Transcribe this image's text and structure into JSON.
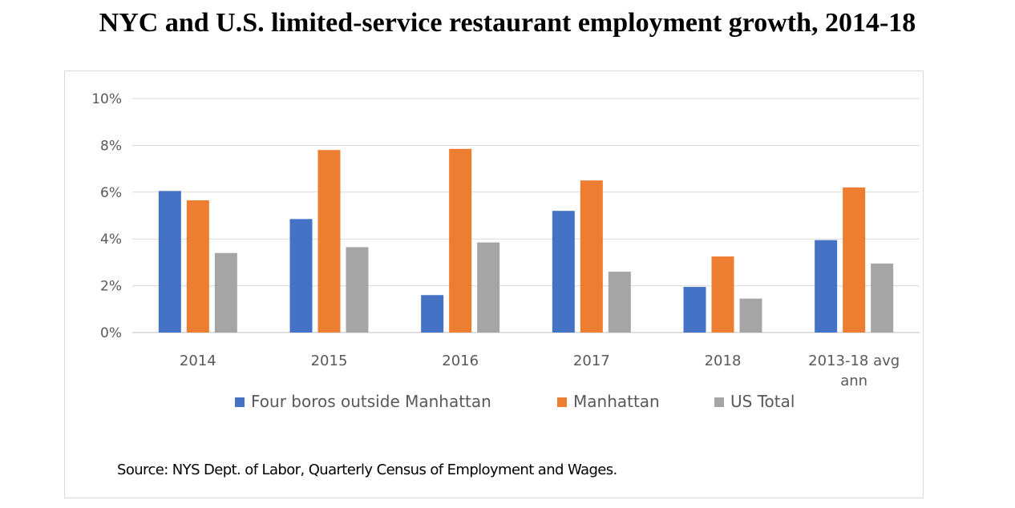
{
  "title": "NYC and U.S. limited-service restaurant employment growth, 2014-18",
  "source": "Source: NYS Dept. of Labor, Quarterly Census of Employment and Wages.",
  "chart_data": {
    "type": "bar",
    "title": "NYC and U.S. limited-service restaurant employment growth, 2014-18",
    "xlabel": "",
    "ylabel": "",
    "ylim": [
      0,
      10
    ],
    "yticks": [
      "0%",
      "2%",
      "4%",
      "6%",
      "8%",
      "10%"
    ],
    "categories": [
      [
        "2014"
      ],
      [
        "2015"
      ],
      [
        "2016"
      ],
      [
        "2017"
      ],
      [
        "2018"
      ],
      [
        "2013-18 avg",
        "ann"
      ]
    ],
    "series": [
      {
        "name": "Four boros outside Manhattan",
        "color": "#4472c4",
        "values": [
          6.05,
          4.85,
          1.6,
          5.2,
          1.95,
          3.95
        ]
      },
      {
        "name": "Manhattan",
        "color": "#ed7d31",
        "values": [
          5.65,
          7.8,
          7.85,
          6.5,
          3.25,
          6.2
        ]
      },
      {
        "name": "US Total",
        "color": "#a5a5a5",
        "values": [
          3.4,
          3.65,
          3.85,
          2.6,
          1.45,
          2.95
        ]
      }
    ],
    "grid": true,
    "legend_position": "bottom"
  }
}
